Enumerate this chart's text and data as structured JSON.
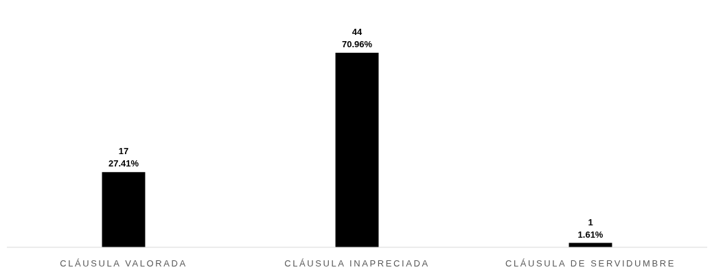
{
  "chart_data": {
    "type": "bar",
    "categories": [
      "CLÁUSULA VALORADA",
      "CLÁUSULA INAPRECIADA",
      "CLÁUSULA DE SERVIDUMBRE"
    ],
    "values": [
      17,
      44,
      1
    ],
    "color": "#000000",
    "value_labels": [
      "17\n27.41%",
      "44\n70.96%",
      "1\n1.61%"
    ]
  }
}
